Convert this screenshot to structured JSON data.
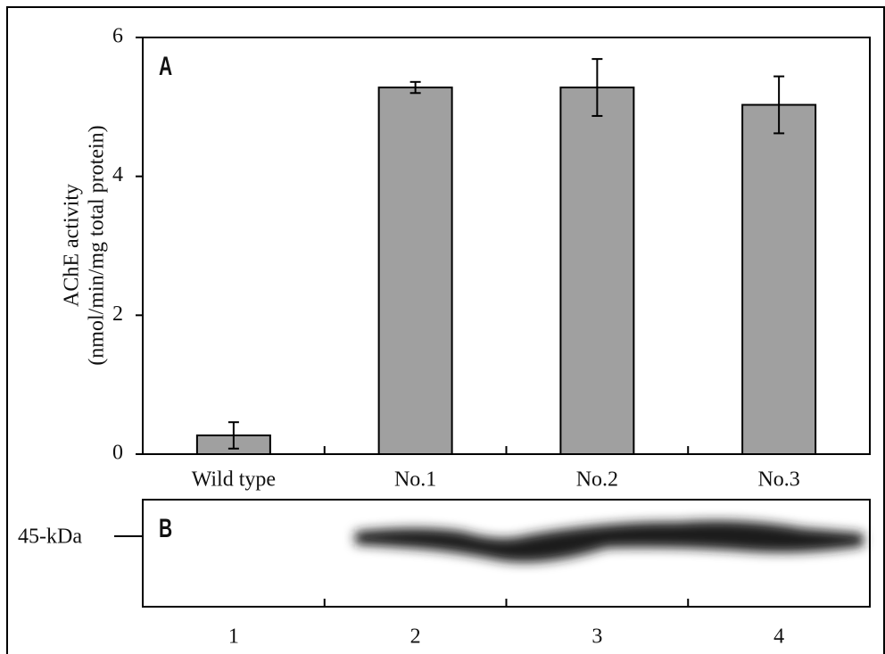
{
  "chart_data": {
    "type": "bar",
    "panel_label": "A",
    "y_label": [
      "AChE activity",
      "(nmol/min/mg total protein)"
    ],
    "categories": [
      "Wild type",
      "No.1",
      "No.2",
      "No.3"
    ],
    "values": [
      0.27,
      5.28,
      5.28,
      5.03
    ],
    "errors": [
      0.19,
      0.08,
      0.41,
      0.41
    ],
    "color": "#a0a0a0",
    "ylim": [
      0,
      6
    ],
    "yticks": [
      0,
      2,
      4,
      6
    ]
  },
  "blot": {
    "panel_label": "B",
    "marker": "45-kDa",
    "lanes": [
      "1",
      "2",
      "3",
      "4"
    ]
  }
}
